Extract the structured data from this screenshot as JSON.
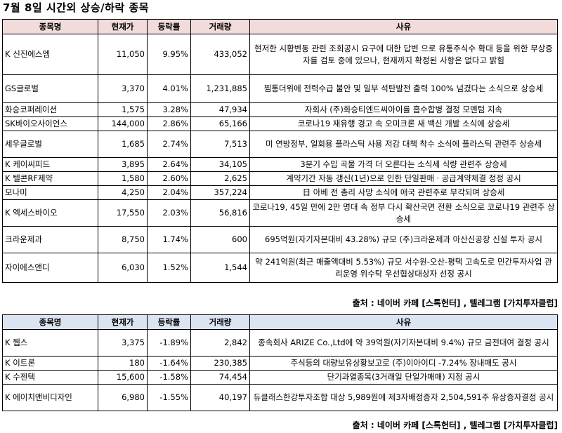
{
  "title": "7월 8일  시간외 상승/하락 종목",
  "headers": {
    "name": "종목명",
    "price": "현재가",
    "change": "등락률",
    "volume": "거래량",
    "reason": "사유"
  },
  "gainers": [
    {
      "name": "K 신진에스엠",
      "price": "11,050",
      "change": "9.95%",
      "volume": "433,052",
      "reason": "현저한 시황변동 관련 조회공시 요구에 대한 답변 으로 유통주식수 확대 등을 위한 무상증자를 검토 중에 있으나, 현재까지 확정된 사항은 없다고 밝힘"
    },
    {
      "name": "GS글로벌",
      "price": "3,370",
      "change": "4.01%",
      "volume": "1,231,885",
      "reason": "찜통더위에 전력수급 불안 및 일부 석탄발전 출력 100% 넘겼다는 소식으로 상승세"
    },
    {
      "name": "화승코퍼레이션",
      "price": "1,575",
      "change": "3.28%",
      "volume": "47,934",
      "reason": "자회사 (주)화승티엔드씨아이를 흡수합병 결정 모멘텀 지속"
    },
    {
      "name": "SK바이오사이언스",
      "price": "144,000",
      "change": "2.86%",
      "volume": "65,166",
      "reason": "코로나19 재유행 경고 속 오미크론 새 백신 개발 소식에 상승세"
    },
    {
      "name": "세우글로벌",
      "price": "1,685",
      "change": "2.74%",
      "volume": "7,513",
      "reason": "미 연방정부, 일회용 플라스틱 사용 저감 대책 착수 소식에 플라스틱 관련주 상승세"
    },
    {
      "name": "K 케이씨피드",
      "price": "3,895",
      "change": "2.64%",
      "volume": "34,105",
      "reason": "3분기 수입 곡물 가격 더 오른다는 소식세 식량 관련주 상승세"
    },
    {
      "name": "K 텔콘RF제약",
      "price": "1,580",
      "change": "2.60%",
      "volume": "2,625",
      "reason": "계약기간 자동 갱신(1년)으로 인한 단일판매ㆍ공급계약체결 정정 공시"
    },
    {
      "name": "모나미",
      "price": "4,250",
      "change": "2.04%",
      "volume": "357,224",
      "reason": "日 아베 전 총리 사망 소식에 애국 관련주로 부각되며 상승세"
    },
    {
      "name": "K 엑세스바이오",
      "price": "17,550",
      "change": "2.03%",
      "volume": "56,816",
      "reason": "코로나19, 45일 만에 2만 명대 속 정부 다시 확산국면 전환 소식으로 코로나19 관련주 상승세"
    },
    {
      "name": "크라운제과",
      "price": "8,750",
      "change": "1.74%",
      "volume": "600",
      "reason": "695억원(자기자본대비 43.28%) 규모 (주)크라운제과 아산신공장 신설 투자 공시"
    },
    {
      "name": "자이에스앤디",
      "price": "6,030",
      "change": "1.52%",
      "volume": "1,544",
      "reason": "약 241억원(최근 매출액대비 5.53%) 규모 서수원-오산-평택 고속도로 민간투자사업 관리운영 위수탁 우선협상대상자 선정 공시"
    }
  ],
  "losers": [
    {
      "name": "K 웹스",
      "price": "3,375",
      "change": "-1.89%",
      "volume": "2,842",
      "reason": "종속회사 ARIZE Co.,Ltd에 약 39억원(자기자본대비 9.4%) 규모 금전대여 결정 공시"
    },
    {
      "name": "K 이트론",
      "price": "180",
      "change": "-1.64%",
      "volume": "230,385",
      "reason": "주식등의 대량보유상황보고로 (주)이아이디 -7.24% 장내매도 공시"
    },
    {
      "name": "K 수젠텍",
      "price": "15,600",
      "change": "-1.58%",
      "volume": "74,454",
      "reason": "단기과열종목(3거래일 단일가매매) 지정 공시"
    },
    {
      "name": "K 에이치앤비디자인",
      "price": "6,980",
      "change": "-1.55%",
      "volume": "40,197",
      "reason": "듀클래스한강투자조합 대상 5,989원에 제3자배정증자 2,504,591주 유상증자결정 공시"
    }
  ],
  "source": "출처 : 네이버 카페 [스톡헌터] , 텔레그램 [가치투자클럽]"
}
